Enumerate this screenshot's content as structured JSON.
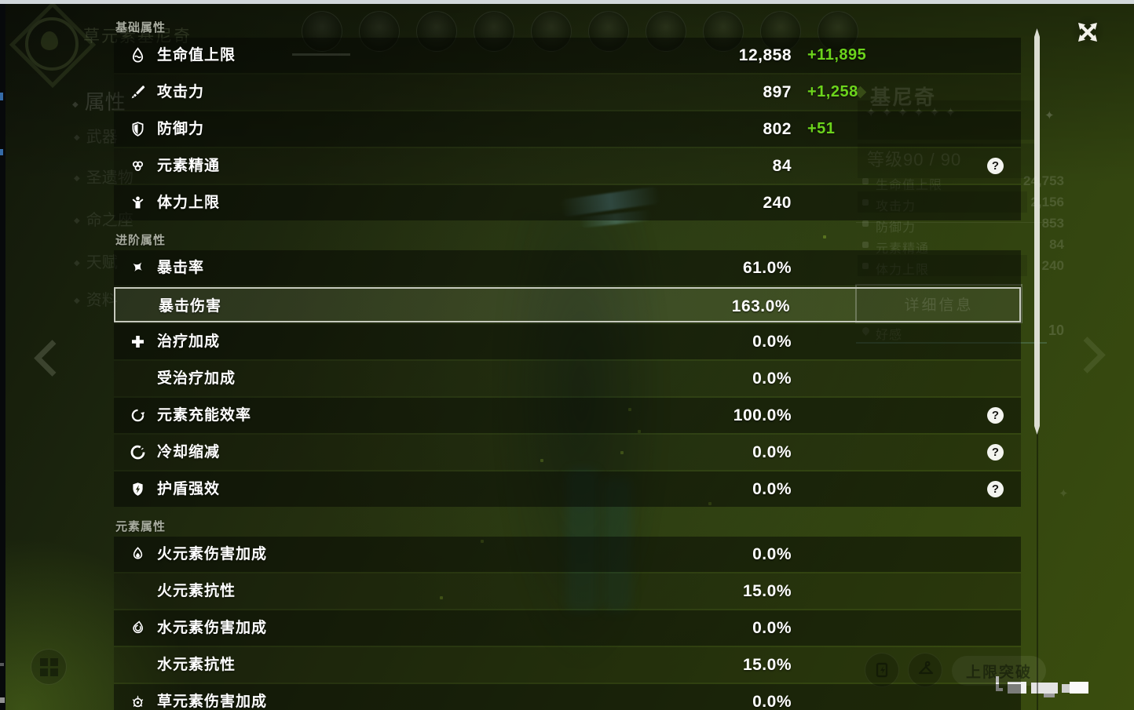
{
  "panel": {
    "help_glyph": "?",
    "sections": [
      {
        "title": "基础属性",
        "rows": [
          {
            "icon": "hp-icon",
            "label": "生命值上限",
            "value": "12,858",
            "bonus": "+11,895"
          },
          {
            "icon": "atk-icon",
            "label": "攻击力",
            "value": "897",
            "bonus": "+1,258"
          },
          {
            "icon": "def-icon",
            "label": "防御力",
            "value": "802",
            "bonus": "+51"
          },
          {
            "icon": "em-icon",
            "label": "元素精通",
            "value": "84",
            "help": true
          },
          {
            "icon": "stamina-icon",
            "label": "体力上限",
            "value": "240"
          }
        ]
      },
      {
        "title": "进阶属性",
        "rows": [
          {
            "icon": "crit-rate-icon",
            "label": "暴击率",
            "value": "61.0%"
          },
          {
            "icon": null,
            "label": "暴击伤害",
            "value": "163.0%",
            "highlight": true
          },
          {
            "icon": "healing-icon",
            "label": "治疗加成",
            "value": "0.0%"
          },
          {
            "icon": null,
            "label": "受治疗加成",
            "value": "0.0%"
          },
          {
            "icon": "energy-recharge-icon",
            "label": "元素充能效率",
            "value": "100.0%",
            "help": true
          },
          {
            "icon": "cooldown-icon",
            "label": "冷却缩减",
            "value": "0.0%",
            "help": true
          },
          {
            "icon": "shield-strength-icon",
            "label": "护盾强效",
            "value": "0.0%",
            "help": true
          }
        ]
      },
      {
        "title": "元素属性",
        "rows": [
          {
            "icon": "pyro-icon",
            "label": "火元素伤害加成",
            "value": "0.0%"
          },
          {
            "icon": null,
            "label": "火元素抗性",
            "value": "15.0%"
          },
          {
            "icon": "hydro-icon",
            "label": "水元素伤害加成",
            "value": "0.0%"
          },
          {
            "icon": null,
            "label": "水元素抗性",
            "value": "15.0%"
          },
          {
            "icon": "dendro-icon",
            "label": "草元素伤害加成",
            "value": "0.0%"
          }
        ]
      }
    ]
  },
  "background": {
    "top_label": "草元素基尼奇",
    "menu": [
      "属性",
      "武器",
      "圣遗物",
      "命之座",
      "天赋",
      "资料"
    ],
    "avatars_count": 10,
    "character_card": {
      "name": "基尼奇",
      "stars": 6,
      "star_glyph": "✦",
      "level_label": "等级90 / 90",
      "stats": [
        {
          "label": "生命值上限",
          "value": "24,753"
        },
        {
          "label": "攻击力",
          "value": "2,156"
        },
        {
          "label": "防御力",
          "value": "853"
        },
        {
          "label": "元素精通",
          "value": "84"
        },
        {
          "label": "体力上限",
          "value": "240"
        }
      ],
      "detail_button": "详细信息",
      "friendship_label": "好感",
      "friendship_value": "10"
    },
    "ascend_button": "上限突破"
  },
  "colors": {
    "bonus_green": "#6cd41c"
  }
}
